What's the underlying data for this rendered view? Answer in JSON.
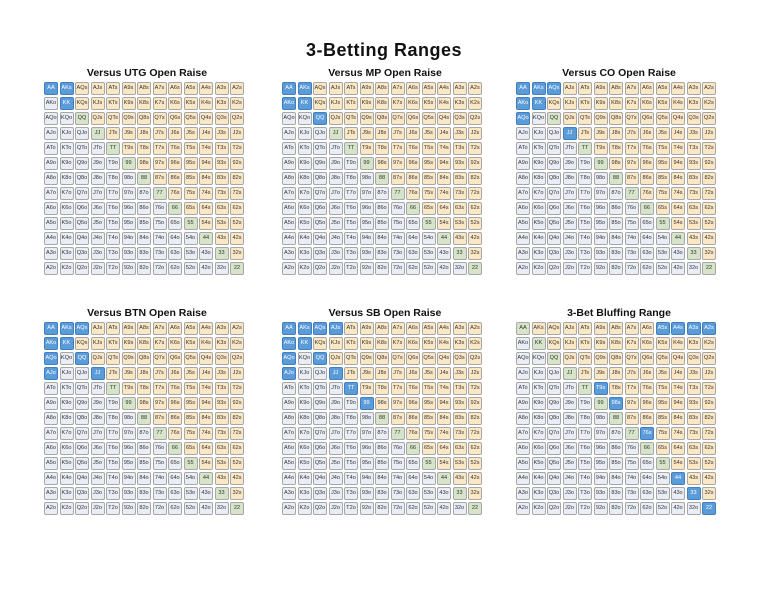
{
  "title": "3-Betting Ranges",
  "hands": [
    [
      "AA",
      "AKs",
      "AQs",
      "AJs",
      "ATs",
      "A9s",
      "A8s",
      "A7s",
      "A6s",
      "A5s",
      "A4s",
      "A3s",
      "A2s"
    ],
    [
      "AKo",
      "KK",
      "KQs",
      "KJs",
      "KTs",
      "K9s",
      "K8s",
      "K7s",
      "K6s",
      "K5s",
      "K4s",
      "K3s",
      "K2s"
    ],
    [
      "AQo",
      "KQo",
      "QQ",
      "QJs",
      "QTs",
      "Q9s",
      "Q8s",
      "Q7s",
      "Q6s",
      "Q5s",
      "Q4s",
      "Q3s",
      "Q2s"
    ],
    [
      "AJo",
      "KJo",
      "QJo",
      "JJ",
      "JTs",
      "J9s",
      "J8s",
      "J7s",
      "J6s",
      "J5s",
      "J4s",
      "J3s",
      "J2s"
    ],
    [
      "ATo",
      "KTo",
      "QTo",
      "JTo",
      "TT",
      "T9s",
      "T8s",
      "T7s",
      "T6s",
      "T5s",
      "T4s",
      "T3s",
      "T2s"
    ],
    [
      "A9o",
      "K9o",
      "Q9o",
      "J9o",
      "T9o",
      "99",
      "98s",
      "97s",
      "96s",
      "95s",
      "94s",
      "93s",
      "92s"
    ],
    [
      "A8o",
      "K8o",
      "Q8o",
      "J8o",
      "T8o",
      "98o",
      "88",
      "87s",
      "86s",
      "85s",
      "84s",
      "83s",
      "82s"
    ],
    [
      "A7o",
      "K7o",
      "Q7o",
      "J7o",
      "T7o",
      "97o",
      "87o",
      "77",
      "76s",
      "75s",
      "74s",
      "73s",
      "72s"
    ],
    [
      "A6o",
      "K6o",
      "Q6o",
      "J6o",
      "T6o",
      "96o",
      "86o",
      "76o",
      "66",
      "65s",
      "64s",
      "63s",
      "62s"
    ],
    [
      "A5o",
      "K5o",
      "Q5o",
      "J5o",
      "T5o",
      "95o",
      "85o",
      "75o",
      "65o",
      "55",
      "54s",
      "53s",
      "52s"
    ],
    [
      "A4o",
      "K4o",
      "Q4o",
      "J4o",
      "T4o",
      "94o",
      "84o",
      "74o",
      "64o",
      "54o",
      "44",
      "43s",
      "42s"
    ],
    [
      "A3o",
      "K3o",
      "Q3o",
      "J3o",
      "T3o",
      "93o",
      "83o",
      "73o",
      "63o",
      "53o",
      "43o",
      "33",
      "32s"
    ],
    [
      "A2o",
      "K2o",
      "Q2o",
      "J2o",
      "T2o",
      "92o",
      "82o",
      "72o",
      "62o",
      "52o",
      "42o",
      "32o",
      "22"
    ]
  ],
  "colors": {
    "suited": "#fbe7c4",
    "offsuit": "#e9eef6",
    "pair": "#d6e5c9",
    "highlight": "#5b9bd8"
  },
  "ranges": [
    {
      "title": "Versus UTG Open Raise",
      "highlighted": [
        "AA",
        "AKs",
        "KK"
      ]
    },
    {
      "title": "Versus MP Open Raise",
      "highlighted": [
        "AA",
        "AKs",
        "AKo",
        "KK",
        "QQ"
      ]
    },
    {
      "title": "Versus CO Open Raise",
      "highlighted": [
        "AA",
        "AKs",
        "AQs",
        "AKo",
        "KK",
        "AQo",
        "JJ"
      ]
    },
    {
      "title": "Versus BTN Open Raise",
      "highlighted": [
        "AA",
        "AKs",
        "AQs",
        "AKo",
        "KK",
        "AQo",
        "QQ",
        "AJo",
        "JJ"
      ]
    },
    {
      "title": "Versus SB Open Raise",
      "highlighted": [
        "AA",
        "AKs",
        "AQs",
        "AJs",
        "AKo",
        "KK",
        "AQo",
        "QQ",
        "AJo",
        "JJ",
        "TT",
        "99"
      ]
    },
    {
      "title": "3-Bet Bluffing Range",
      "highlighted": [
        "A5s",
        "A4s",
        "A3s",
        "A2s",
        "T9s",
        "98s",
        "76s",
        "44",
        "33",
        "22"
      ]
    }
  ],
  "chart_data": [
    {
      "type": "table",
      "title": "Versus UTG Open Raise",
      "three_bet_hands": [
        "AA",
        "AKs",
        "KK"
      ]
    },
    {
      "type": "table",
      "title": "Versus MP Open Raise",
      "three_bet_hands": [
        "AA",
        "AKs",
        "AKo",
        "KK",
        "QQ"
      ]
    },
    {
      "type": "table",
      "title": "Versus CO Open Raise",
      "three_bet_hands": [
        "AA",
        "AKs",
        "AQs",
        "AKo",
        "KK",
        "AQo",
        "JJ"
      ]
    },
    {
      "type": "table",
      "title": "Versus BTN Open Raise",
      "three_bet_hands": [
        "AA",
        "AKs",
        "AQs",
        "AKo",
        "KK",
        "AQo",
        "QQ",
        "AJo",
        "JJ"
      ]
    },
    {
      "type": "table",
      "title": "Versus SB Open Raise",
      "three_bet_hands": [
        "AA",
        "AKs",
        "AQs",
        "AJs",
        "AKo",
        "KK",
        "AQo",
        "QQ",
        "AJo",
        "JJ",
        "TT",
        "99"
      ]
    },
    {
      "type": "table",
      "title": "3-Bet Bluffing Range",
      "three_bet_hands": [
        "A5s",
        "A4s",
        "A3s",
        "A2s",
        "T9s",
        "98s",
        "76s",
        "44",
        "33",
        "22"
      ]
    }
  ]
}
